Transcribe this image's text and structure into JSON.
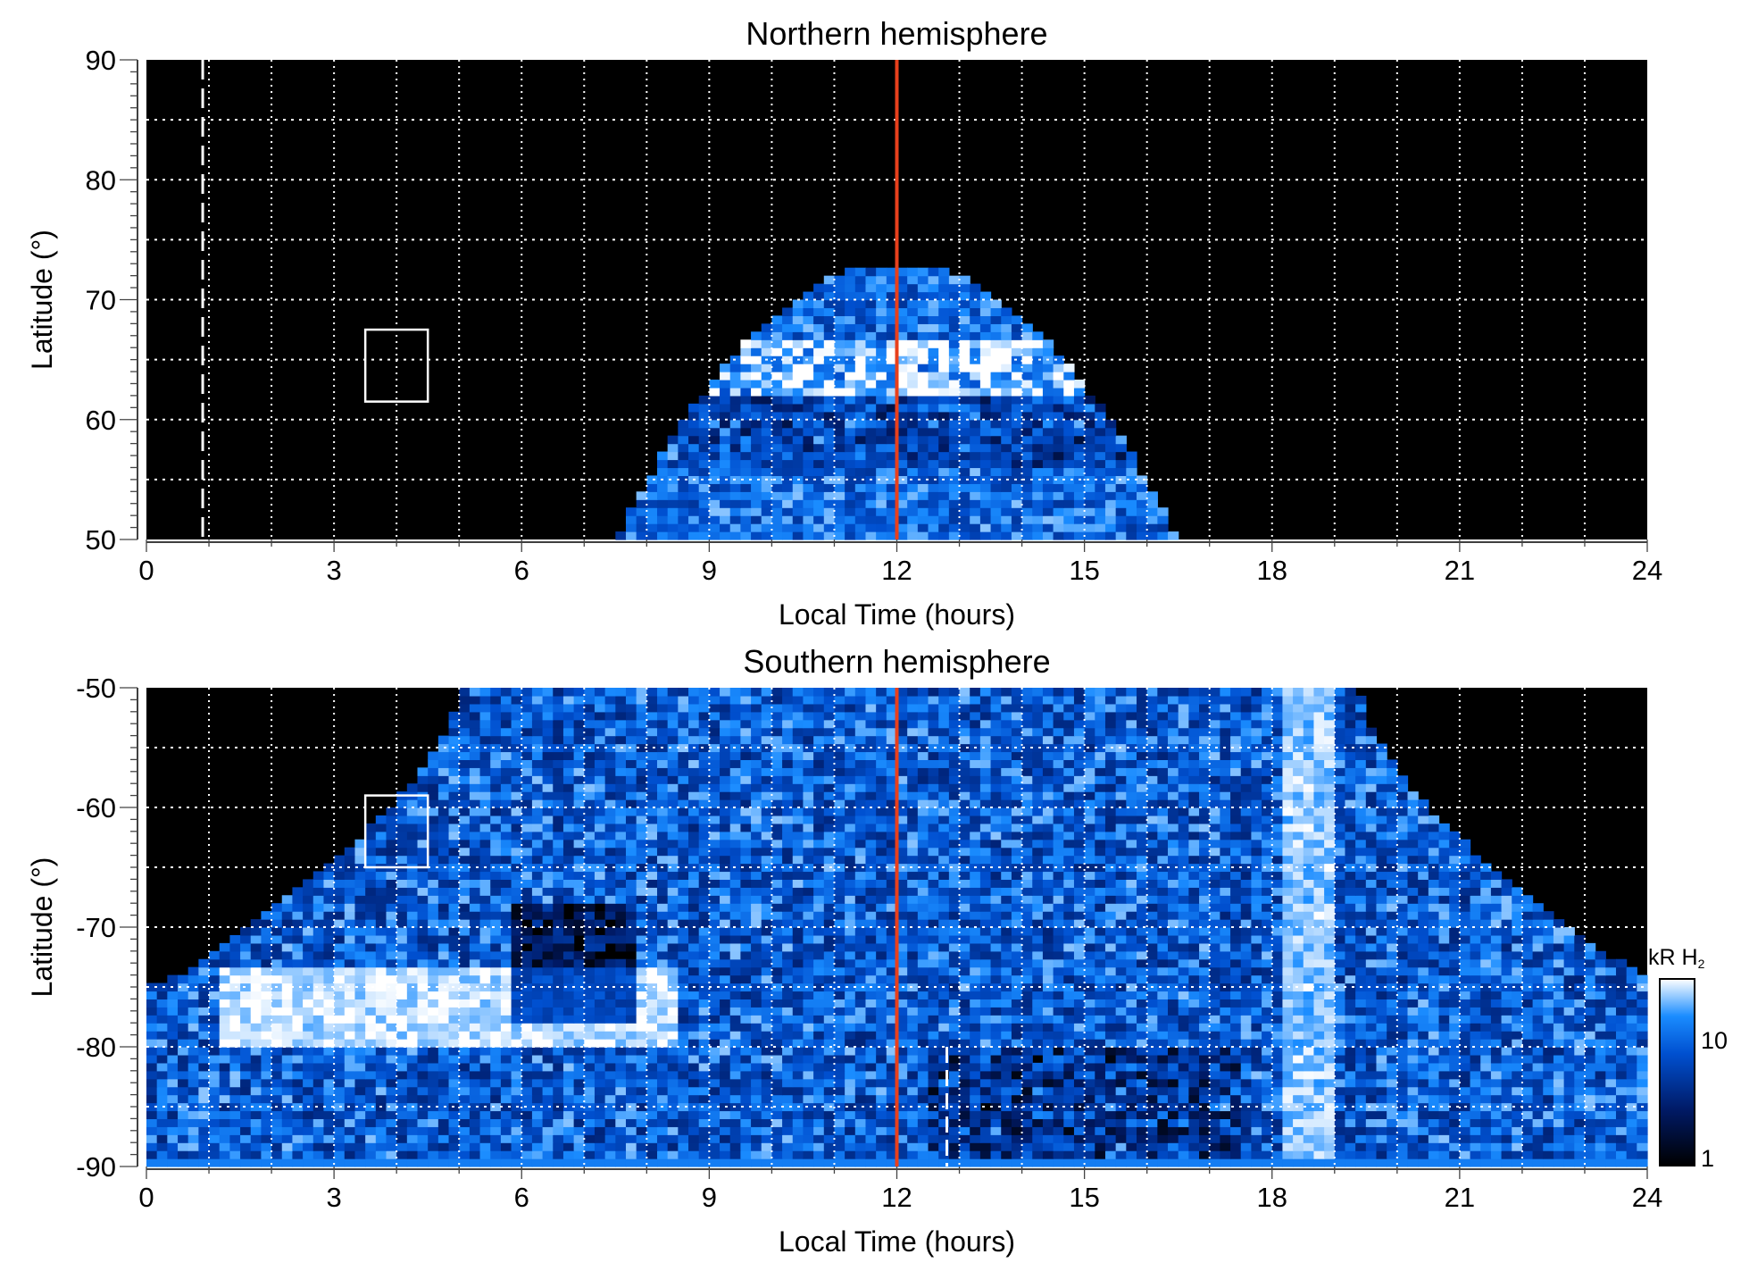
{
  "chart_data": [
    {
      "type": "heatmap",
      "title": "Northern hemisphere",
      "xlabel": "Local Time (hours)",
      "ylabel": "Latitude (°)",
      "xlim": [
        0,
        24
      ],
      "ylim": [
        50,
        90
      ],
      "xticks": [
        "0",
        "3",
        "6",
        "9",
        "12",
        "15",
        "18",
        "21",
        "24"
      ],
      "yticks": [
        "50",
        "60",
        "70",
        "80",
        "90"
      ],
      "grid": true,
      "noon_line_lt": 12,
      "noon_line_color": "#e8401c",
      "dashed_line_lt": 0.9,
      "box": {
        "lt": [
          3.5,
          4.5
        ],
        "lat": [
          61.5,
          67.5
        ]
      },
      "emission_region": {
        "lt_at_lat50": [
          7.6,
          16.6
        ],
        "max_lat": 73,
        "bright_band_lat": [
          63,
          67
        ]
      }
    },
    {
      "type": "heatmap",
      "title": "Southern hemisphere",
      "xlabel": "Local Time (hours)",
      "ylabel": "Latitude (°)",
      "xlim": [
        0,
        24
      ],
      "ylim": [
        -90,
        -50
      ],
      "xticks": [
        "0",
        "3",
        "6",
        "9",
        "12",
        "15",
        "18",
        "21",
        "24"
      ],
      "yticks": [
        "-90",
        "-80",
        "-70",
        "-60",
        "-50"
      ],
      "grid": true,
      "noon_line_lt": 12,
      "noon_line_color": "#e8401c",
      "dashed_line_lt": 12.8,
      "box": {
        "lt": [
          3.5,
          4.5
        ],
        "lat": [
          -65,
          -59
        ]
      },
      "emission_region": {
        "lt_at_lat_minus50": [
          5,
          19.5
        ],
        "full_coverage_below_lat": -75,
        "bright_arc_lt": [
          1.5,
          8
        ],
        "bright_arc_lat": [
          -79,
          -74
        ],
        "bright_band_lt": [
          18.2,
          19
        ]
      }
    }
  ],
  "colorbar": {
    "label": "kR H",
    "label_sub": "2",
    "ticks": [
      "1",
      "10"
    ],
    "range": [
      1,
      25
    ],
    "scale": "log",
    "colors": [
      "#000000",
      "#001a66",
      "#0050d0",
      "#1a8cff",
      "#ffffff"
    ]
  }
}
